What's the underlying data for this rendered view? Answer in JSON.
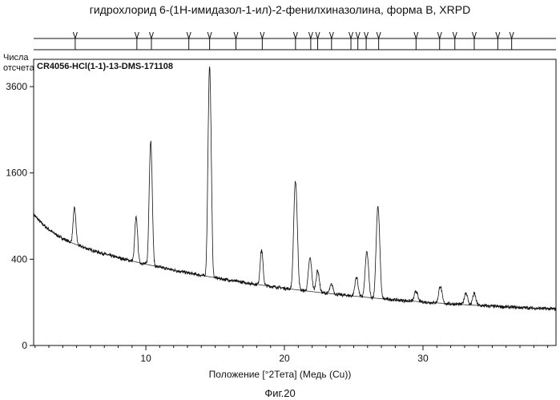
{
  "chart_data": {
    "type": "line",
    "title": "гидрохлорид 6-(1Н-имидазол-1-ил)-2-фенилхиназолина, форма В, XRPD",
    "sample_label": "CR4056-HCl(1-1)-13-DMS-171108",
    "ylabel_lines": [
      "Числа",
      "отсчета"
    ],
    "xlabel": "Положение [°2Тета] (Медь (Cu))",
    "caption": "Фиг.20",
    "xlim": [
      1.9,
      39.6
    ],
    "ylim": [
      0,
      4400
    ],
    "y_scale": "sqrt",
    "x_ticks": [
      10,
      20,
      30
    ],
    "y_ticks": [
      0,
      400,
      1600,
      3600
    ],
    "grid": false,
    "reference_peak_positions": [
      4.9,
      9.35,
      10.4,
      13.1,
      14.6,
      16.5,
      18.4,
      20.8,
      21.9,
      22.4,
      23.4,
      24.8,
      25.3,
      25.9,
      26.8,
      29.5,
      31.2,
      32.3,
      33.7,
      35.4,
      36.4
    ],
    "peaks": [
      {
        "x": 4.85,
        "y": 1010
      },
      {
        "x": 9.3,
        "y": 880
      },
      {
        "x": 10.35,
        "y": 2250
      },
      {
        "x": 13.1,
        "y": 270
      },
      {
        "x": 14.6,
        "y": 4150
      },
      {
        "x": 18.35,
        "y": 490
      },
      {
        "x": 20.8,
        "y": 1450
      },
      {
        "x": 21.85,
        "y": 410
      },
      {
        "x": 22.4,
        "y": 300
      },
      {
        "x": 23.4,
        "y": 200
      },
      {
        "x": 25.2,
        "y": 250
      },
      {
        "x": 25.95,
        "y": 470
      },
      {
        "x": 26.75,
        "y": 1030
      },
      {
        "x": 29.5,
        "y": 160
      },
      {
        "x": 31.25,
        "y": 190
      },
      {
        "x": 33.1,
        "y": 150
      },
      {
        "x": 33.7,
        "y": 145
      }
    ],
    "series": [
      {
        "x": [
          1.9,
          2.1,
          2.4,
          2.8,
          3.2,
          3.6,
          4.0,
          4.4,
          4.7,
          4.85,
          5.0,
          5.4,
          6.0,
          7.0,
          8.0,
          9.0,
          9.3,
          9.6,
          10.0,
          10.35,
          10.7,
          11.0,
          12.0,
          12.8,
          13.1,
          13.4,
          14.0,
          14.4,
          14.6,
          14.8,
          15.2,
          16.0,
          16.5,
          17.0,
          18.0,
          18.35,
          18.7,
          19.5,
          20.5,
          20.8,
          21.1,
          21.5,
          21.85,
          22.1,
          22.4,
          22.7,
          23.4,
          24.0,
          25.2,
          25.6,
          25.95,
          26.3,
          26.75,
          27.2,
          28.0,
          29.0,
          29.5,
          30.0,
          31.25,
          31.7,
          32.5,
          33.1,
          33.4,
          33.7,
          34.2,
          35.0,
          36.0,
          37.0,
          38.0,
          39.0,
          39.6
        ],
        "y": [
          1130,
          700,
          520,
          470,
          450,
          440,
          420,
          430,
          650,
          1010,
          640,
          380,
          350,
          330,
          305,
          300,
          880,
          320,
          360,
          2250,
          400,
          280,
          260,
          240,
          270,
          230,
          230,
          700,
          4150,
          620,
          220,
          210,
          230,
          195,
          185,
          490,
          190,
          180,
          200,
          1450,
          280,
          230,
          410,
          260,
          300,
          200,
          200,
          170,
          250,
          190,
          470,
          240,
          1030,
          200,
          150,
          125,
          160,
          120,
          190,
          120,
          95,
          150,
          115,
          145,
          95,
          75,
          65,
          60,
          52,
          48,
          50
        ]
      }
    ]
  }
}
